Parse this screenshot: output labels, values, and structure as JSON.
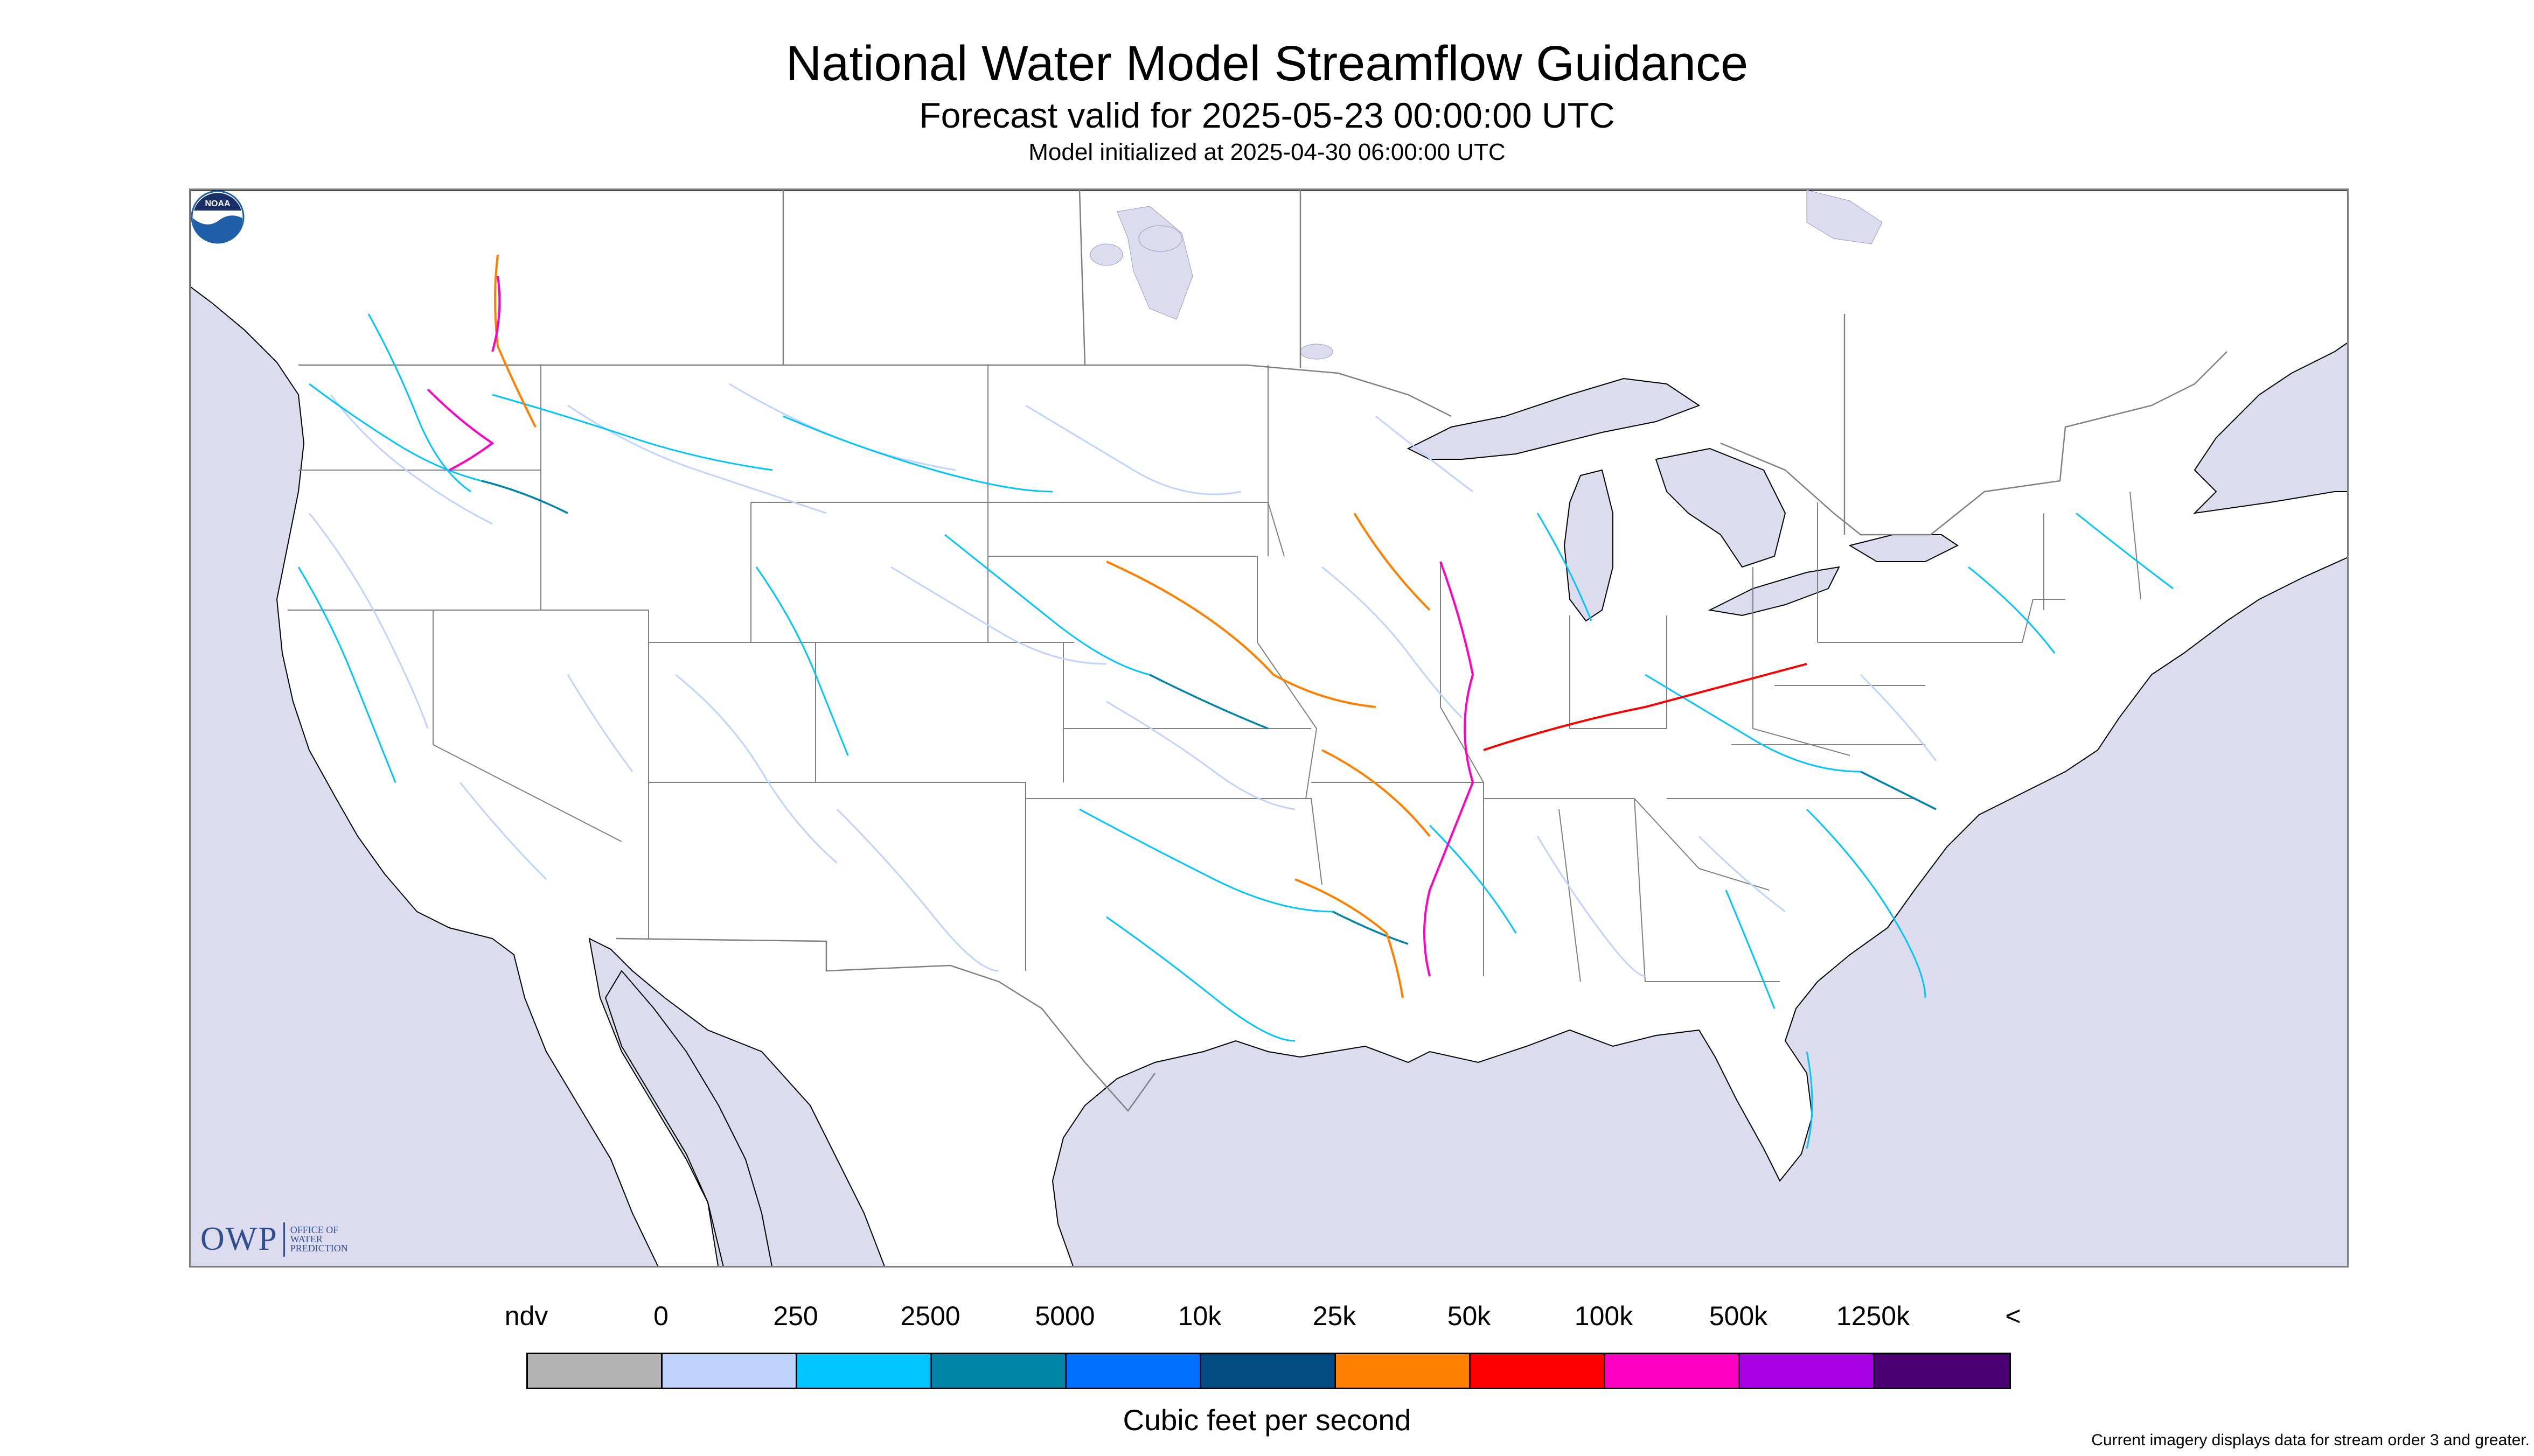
{
  "header": {
    "title": "National Water Model Streamflow Guidance",
    "forecast_valid": "Forecast valid for 2025-05-23 00:00:00 UTC",
    "model_init": "Model initialized at 2025-04-30 06:00:00 UTC"
  },
  "map": {
    "logo_owp": "OWP",
    "logo_owp_full": "OFFICE OF\nWATER\nPREDICTION",
    "logo_noaa": "NOAA",
    "ocean_color": "#dcdcee",
    "land_color": "#ffffff",
    "border_color": "#808080"
  },
  "legend": {
    "labels": [
      "ndv",
      "0",
      "250",
      "2500",
      "5000",
      "10k",
      "25k",
      "50k",
      "100k",
      "500k",
      "1250k",
      "<"
    ],
    "colors": [
      "#b3b3b3",
      "#bfd3ff",
      "#00c5ff",
      "#0084a8",
      "#0070ff",
      "#004c81",
      "#ff8000",
      "#ff0000",
      "#ff00c5",
      "#a900e6",
      "#4c0073"
    ],
    "units": "Cubic feet per second"
  },
  "footnote": "Current imagery displays data for stream order 3 and greater."
}
